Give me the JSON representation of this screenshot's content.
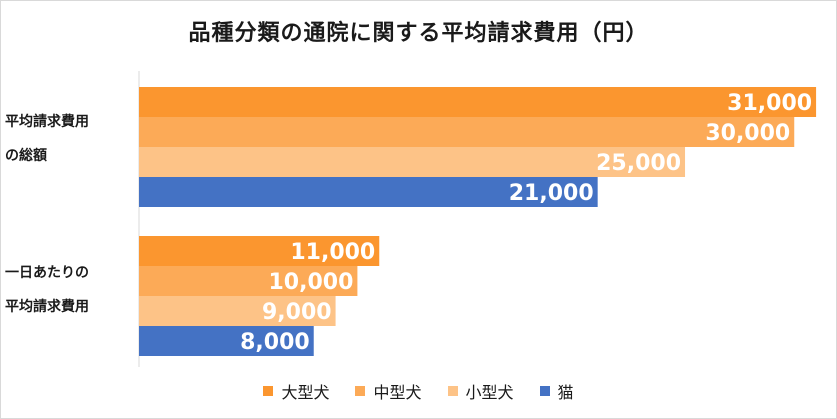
{
  "chart_data": {
    "type": "bar",
    "orientation": "horizontal",
    "title": "品種分類の通院に関する平均請求費用（円）",
    "categories": [
      [
        "平均請求費用",
        "の総額"
      ],
      [
        "一日あたりの",
        "平均請求費用"
      ]
    ],
    "series": [
      {
        "name": "大型犬",
        "color": "#fb962f",
        "values": [
          31000,
          11000
        ],
        "labels": [
          "31,000",
          "11,000"
        ]
      },
      {
        "name": "中型犬",
        "color": "#fcaa57",
        "values": [
          30000,
          10000
        ],
        "labels": [
          "30,000",
          "10,000"
        ]
      },
      {
        "name": "小型犬",
        "color": "#fdc387",
        "values": [
          25000,
          9000
        ],
        "labels": [
          "25,000",
          "9,000"
        ]
      },
      {
        "name": "猫",
        "color": "#4472c4",
        "values": [
          21000,
          8000
        ],
        "labels": [
          "21,000",
          "8,000"
        ]
      }
    ],
    "xlim": [
      0,
      31500
    ],
    "grid": false,
    "legend_position": "bottom"
  }
}
